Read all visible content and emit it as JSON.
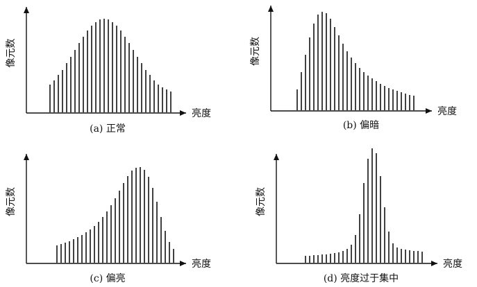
{
  "chart_data": [
    {
      "type": "bar",
      "title": "(a) 正常",
      "x_label": "亮度",
      "y_label": "像元数",
      "values": [
        40,
        46,
        54,
        61,
        71,
        80,
        90,
        100,
        109,
        118,
        125,
        130,
        134,
        135,
        134,
        130,
        125,
        118,
        109,
        100,
        90,
        80,
        71,
        61,
        54,
        46,
        40,
        36,
        33,
        30
      ]
    },
    {
      "type": "bar",
      "title": "(b) 偏暗",
      "x_label": "亮度",
      "y_label": "像元数",
      "values": [
        30,
        55,
        80,
        105,
        125,
        138,
        142,
        140,
        132,
        120,
        108,
        96,
        85,
        76,
        68,
        61,
        55,
        50,
        46,
        42,
        38,
        35,
        32,
        30,
        28,
        26,
        24,
        22,
        21
      ]
    },
    {
      "type": "bar",
      "title": "(c) 偏亮",
      "x_label": "亮度",
      "y_label": "像元数",
      "values": [
        25,
        27,
        29,
        31,
        34,
        37,
        40,
        44,
        48,
        53,
        59,
        66,
        74,
        83,
        93,
        104,
        115,
        125,
        133,
        137,
        138,
        134,
        124,
        108,
        88,
        66,
        46,
        30,
        20
      ]
    },
    {
      "type": "bar",
      "title": "(d) 亮度过于集中",
      "x_label": "亮度",
      "y_label": "像元数",
      "values": [
        10,
        10,
        11,
        11,
        12,
        12,
        13,
        14,
        15,
        17,
        20,
        26,
        40,
        70,
        115,
        150,
        165,
        158,
        125,
        80,
        45,
        28,
        22,
        20,
        19,
        18,
        17,
        17,
        16
      ]
    }
  ]
}
